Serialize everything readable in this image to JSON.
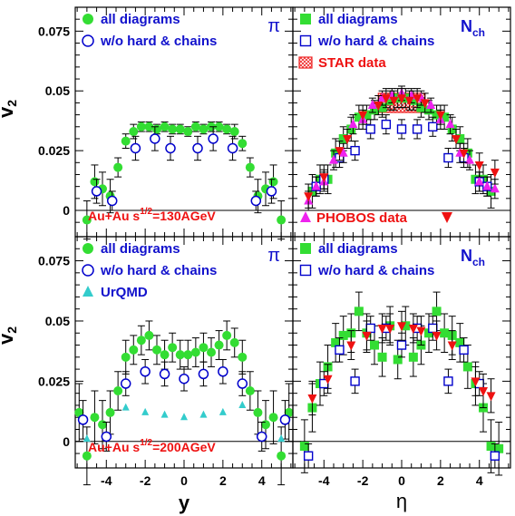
{
  "figure": {
    "y_axis_label": "v",
    "y_axis_label_sub": "2",
    "x_label_left": "y",
    "x_label_right": "η",
    "colors": {
      "all_diagrams": "#33dd33",
      "wo_hard_chains": "#0000cc",
      "urqmd": "#33cccc",
      "star": "#ee2222",
      "phobos_triangle": "#ee22ee",
      "phobos_down": "#ee1111",
      "text_blue": "#1111cc",
      "text_red": "#ee1111"
    }
  },
  "chart_data": [
    {
      "type": "scatter",
      "panel": "top-left",
      "xlim": [
        -5.6,
        5.6
      ],
      "ylim": [
        -0.011,
        0.085
      ],
      "xticks": [],
      "yticks": [
        "0",
        "0.025",
        "0.05",
        "0.075"
      ],
      "species_label": "π",
      "species_sub": "",
      "annotation": "Au+Au  s",
      "annotation_sup": "1/2",
      "annotation_tail": "=130AGeV",
      "legend": [
        {
          "marker": "circle-filled",
          "label": "all diagrams"
        },
        {
          "marker": "circle-open",
          "label": "w/o hard & chains"
        }
      ],
      "series": [
        {
          "marker": "circle-filled",
          "color": "#33dd33",
          "x": [
            -5.0,
            -4.6,
            -4.2,
            -3.8,
            -3.4,
            -3.0,
            -2.6,
            -2.2,
            -1.8,
            -1.4,
            -1.0,
            -0.6,
            -0.2,
            0.2,
            0.6,
            1.0,
            1.4,
            1.8,
            2.2,
            2.6,
            3.0,
            3.4,
            3.8,
            4.2,
            4.6,
            5.0
          ],
          "y": [
            -0.004,
            0.012,
            0.009,
            0.006,
            0.018,
            0.029,
            0.033,
            0.035,
            0.035,
            0.034,
            0.035,
            0.034,
            0.034,
            0.033,
            0.035,
            0.034,
            0.035,
            0.035,
            0.034,
            0.033,
            0.028,
            0.018,
            0.006,
            0.009,
            0.012,
            -0.004
          ],
          "err": [
            0.008,
            0.007,
            0.007,
            0.007,
            0.004,
            0.003,
            0.003,
            0.002,
            0.002,
            0.002,
            0.002,
            0.002,
            0.002,
            0.002,
            0.002,
            0.002,
            0.002,
            0.002,
            0.002,
            0.003,
            0.003,
            0.004,
            0.007,
            0.007,
            0.007,
            0.008
          ]
        },
        {
          "marker": "circle-open",
          "color": "#0000cc",
          "x": [
            -4.5,
            -3.7,
            -2.5,
            -1.5,
            -0.7,
            0.7,
            1.5,
            2.5,
            3.7,
            4.5
          ],
          "y": [
            0.008,
            0.004,
            0.026,
            0.03,
            0.026,
            0.026,
            0.03,
            0.026,
            0.004,
            0.008
          ],
          "err": [
            0.005,
            0.004,
            0.005,
            0.005,
            0.005,
            0.005,
            0.005,
            0.005,
            0.004,
            0.005
          ]
        }
      ]
    },
    {
      "type": "scatter",
      "panel": "top-right",
      "xlim": [
        -5.6,
        5.6
      ],
      "ylim": [
        -0.011,
        0.085
      ],
      "xticks": [],
      "yticks": [],
      "species_label": "N",
      "species_sub": "ch",
      "annotation": "PHOBOS data",
      "legend": [
        {
          "marker": "square-filled",
          "label": "all diagrams"
        },
        {
          "marker": "square-open",
          "label": "w/o hard & chains"
        },
        {
          "marker": "star-box",
          "label": "STAR data"
        }
      ],
      "star_band": {
        "x": [
          -1.2,
          1.2
        ],
        "y": [
          0.041,
          0.049
        ]
      },
      "series": [
        {
          "marker": "square-filled",
          "color": "#33dd33",
          "x": [
            -4.6,
            -4.2,
            -3.8,
            -3.4,
            -3.0,
            -2.6,
            -2.2,
            -1.8,
            -1.4,
            -1.0,
            -0.6,
            -0.2,
            0.2,
            0.6,
            1.0,
            1.4,
            1.8,
            2.2,
            2.6,
            3.0,
            3.4,
            3.8,
            4.2,
            4.6
          ],
          "y": [
            0.008,
            0.013,
            0.013,
            0.024,
            0.03,
            0.034,
            0.039,
            0.04,
            0.042,
            0.043,
            0.046,
            0.047,
            0.047,
            0.046,
            0.043,
            0.042,
            0.04,
            0.039,
            0.034,
            0.03,
            0.024,
            0.013,
            0.013,
            0.008
          ],
          "err": [
            0.007,
            0.006,
            0.006,
            0.006,
            0.005,
            0.005,
            0.005,
            0.004,
            0.004,
            0.004,
            0.004,
            0.004,
            0.004,
            0.004,
            0.004,
            0.004,
            0.004,
            0.005,
            0.005,
            0.005,
            0.006,
            0.006,
            0.006,
            0.007
          ]
        },
        {
          "marker": "square-open",
          "color": "#0000cc",
          "x": [
            -4.4,
            -4.0,
            -3.2,
            -2.4,
            -1.6,
            -0.8,
            0.0,
            0.8,
            1.6,
            2.4,
            3.2,
            4.0,
            4.4
          ],
          "y": [
            0.01,
            0.013,
            0.022,
            0.025,
            0.034,
            0.036,
            0.034,
            0.034,
            0.035,
            0.022,
            0.022,
            0.012,
            0.01
          ],
          "err": [
            0.004,
            0.004,
            0.004,
            0.004,
            0.004,
            0.004,
            0.004,
            0.004,
            0.004,
            0.004,
            0.004,
            0.004,
            0.004
          ]
        },
        {
          "marker": "triangle-up",
          "color": "#ee22ee",
          "x": [
            -4.8,
            -4.4,
            -4.0,
            -3.5,
            -3.0,
            -2.5,
            -2.0,
            -1.5,
            -1.0,
            -0.5,
            0.0,
            0.5,
            1.0,
            1.5,
            2.0,
            2.5,
            3.0,
            3.5,
            4.0,
            4.4,
            4.8
          ],
          "y": [
            0.004,
            0.01,
            0.012,
            0.021,
            0.024,
            0.036,
            0.038,
            0.044,
            0.047,
            0.048,
            0.049,
            0.048,
            0.047,
            0.044,
            0.038,
            0.036,
            0.024,
            0.021,
            0.012,
            0.01,
            0.009
          ],
          "err": [
            0.004,
            0.004,
            0.004,
            0.004,
            0.004,
            0.004,
            0.004,
            0.003,
            0.003,
            0.003,
            0.003,
            0.003,
            0.003,
            0.003,
            0.004,
            0.004,
            0.004,
            0.004,
            0.004,
            0.004,
            0.004
          ]
        },
        {
          "marker": "triangle-down",
          "color": "#ee1111",
          "x": [
            -4.8,
            -4.0,
            -3.2,
            -2.8,
            -2.0,
            -1.2,
            -0.8,
            -0.4,
            0.0,
            0.4,
            0.8,
            1.2,
            2.0,
            2.8,
            3.2,
            4.0,
            4.8
          ],
          "y": [
            0.006,
            0.014,
            0.025,
            0.03,
            0.04,
            0.044,
            0.047,
            0.046,
            0.047,
            0.046,
            0.047,
            0.045,
            0.04,
            0.03,
            0.024,
            0.019,
            0.016
          ],
          "err": [
            0.005,
            0.005,
            0.004,
            0.004,
            0.004,
            0.004,
            0.004,
            0.004,
            0.004,
            0.004,
            0.004,
            0.004,
            0.004,
            0.004,
            0.004,
            0.005,
            0.005
          ]
        }
      ]
    },
    {
      "type": "scatter",
      "panel": "bottom-left",
      "xlim": [
        -5.6,
        5.6
      ],
      "ylim": [
        -0.011,
        0.085
      ],
      "xticks": [
        "-4",
        "-2",
        "0",
        "2",
        "4"
      ],
      "yticks": [
        "0",
        "0.025",
        "0.05",
        "0.075"
      ],
      "species_label": "π",
      "species_sub": "",
      "annotation": "Au+Au  s",
      "annotation_sup": "1/2",
      "annotation_tail": "=200AGeV",
      "legend": [
        {
          "marker": "circle-filled",
          "label": "all diagrams"
        },
        {
          "marker": "circle-open",
          "label": "w/o hard & chains"
        },
        {
          "marker": "triangle-up",
          "label": "UrQMD"
        }
      ],
      "series": [
        {
          "marker": "circle-filled",
          "color": "#33dd33",
          "x": [
            -5.4,
            -5.0,
            -4.6,
            -4.2,
            -3.8,
            -3.4,
            -3.0,
            -2.6,
            -2.2,
            -1.8,
            -1.4,
            -1.0,
            -0.6,
            -0.2,
            0.2,
            0.6,
            1.0,
            1.4,
            1.8,
            2.2,
            2.6,
            3.0,
            3.4,
            3.8,
            4.2,
            4.6,
            5.0,
            5.4
          ],
          "y": [
            0.012,
            -0.006,
            0.01,
            0.007,
            0.012,
            0.021,
            0.035,
            0.038,
            0.042,
            0.044,
            0.038,
            0.036,
            0.039,
            0.036,
            0.036,
            0.037,
            0.039,
            0.037,
            0.04,
            0.044,
            0.041,
            0.035,
            0.021,
            0.012,
            0.007,
            0.01,
            -0.006,
            0.012
          ],
          "err": [
            0.012,
            0.012,
            0.011,
            0.01,
            0.009,
            0.008,
            0.007,
            0.006,
            0.006,
            0.006,
            0.006,
            0.006,
            0.006,
            0.006,
            0.006,
            0.006,
            0.006,
            0.006,
            0.006,
            0.006,
            0.006,
            0.007,
            0.008,
            0.009,
            0.01,
            0.011,
            0.012,
            0.012
          ]
        },
        {
          "marker": "circle-open",
          "color": "#0000cc",
          "x": [
            -5.2,
            -4.0,
            -3.0,
            -2.0,
            -1.0,
            0.0,
            1.0,
            2.0,
            3.0,
            4.0,
            5.2
          ],
          "y": [
            0.009,
            0.002,
            0.024,
            0.029,
            0.028,
            0.026,
            0.028,
            0.029,
            0.024,
            0.002,
            0.009
          ],
          "err": [
            0.008,
            0.006,
            0.005,
            0.005,
            0.005,
            0.005,
            0.005,
            0.005,
            0.005,
            0.006,
            0.008
          ]
        },
        {
          "marker": "triangle-up",
          "color": "#33cccc",
          "x": [
            -5.0,
            -3.0,
            -2.0,
            -1.0,
            0.0,
            1.0,
            2.0,
            3.0,
            5.0
          ],
          "y": [
            0.001,
            0.014,
            0.012,
            0.011,
            0.01,
            0.011,
            0.012,
            0.015,
            0.001
          ],
          "err": [
            0,
            0,
            0,
            0,
            0,
            0,
            0,
            0,
            0
          ]
        }
      ]
    },
    {
      "type": "scatter",
      "panel": "bottom-right",
      "xlim": [
        -5.6,
        5.6
      ],
      "ylim": [
        -0.011,
        0.085
      ],
      "xticks": [
        "-4",
        "-2",
        "0",
        "2",
        "4"
      ],
      "yticks": [],
      "species_label": "N",
      "species_sub": "ch",
      "legend": [
        {
          "marker": "square-filled",
          "label": "all diagrams"
        },
        {
          "marker": "square-open",
          "label": "w/o hard & chains"
        }
      ],
      "series": [
        {
          "marker": "square-filled",
          "color": "#33dd33",
          "x": [
            -5.0,
            -4.6,
            -4.2,
            -3.8,
            -3.4,
            -3.0,
            -2.6,
            -2.2,
            -1.8,
            -1.4,
            -1.0,
            -0.6,
            -0.2,
            0.2,
            0.6,
            1.0,
            1.4,
            1.8,
            2.2,
            2.6,
            3.0,
            3.4,
            3.8,
            4.2,
            4.6,
            5.0
          ],
          "y": [
            -0.002,
            0.014,
            0.024,
            0.031,
            0.041,
            0.044,
            0.045,
            0.054,
            0.045,
            0.04,
            0.035,
            0.048,
            0.034,
            0.048,
            0.035,
            0.04,
            0.045,
            0.054,
            0.045,
            0.044,
            0.041,
            0.031,
            0.024,
            0.014,
            -0.002,
            -0.003
          ],
          "err": [
            0.011,
            0.01,
            0.009,
            0.009,
            0.008,
            0.008,
            0.008,
            0.008,
            0.008,
            0.008,
            0.008,
            0.008,
            0.008,
            0.008,
            0.008,
            0.008,
            0.008,
            0.008,
            0.008,
            0.008,
            0.008,
            0.009,
            0.009,
            0.01,
            0.011,
            0.011
          ]
        },
        {
          "marker": "square-open",
          "color": "#0000cc",
          "x": [
            -4.8,
            -4.0,
            -3.2,
            -2.4,
            -1.6,
            -0.8,
            0.0,
            0.8,
            1.6,
            2.4,
            3.2,
            4.0,
            4.8
          ],
          "y": [
            -0.006,
            0.024,
            0.038,
            0.025,
            0.047,
            0.047,
            0.04,
            0.047,
            0.047,
            0.025,
            0.038,
            0.024,
            -0.006
          ],
          "err": [
            0.005,
            0.005,
            0.005,
            0.005,
            0.005,
            0.005,
            0.005,
            0.005,
            0.005,
            0.005,
            0.005,
            0.005,
            0.005
          ]
        },
        {
          "marker": "triangle-down",
          "color": "#ee1111",
          "x": [
            -4.6,
            -3.8,
            -2.6,
            -1.8,
            -1.0,
            -0.6,
            0.0,
            0.6,
            1.0,
            1.8,
            2.6,
            3.8,
            4.2,
            4.6
          ],
          "y": [
            0.018,
            0.026,
            0.04,
            0.044,
            0.047,
            0.047,
            0.048,
            0.047,
            0.046,
            0.044,
            0.04,
            0.025,
            0.021,
            0.019
          ],
          "err": [
            0.007,
            0.006,
            0.006,
            0.006,
            0.006,
            0.006,
            0.006,
            0.006,
            0.006,
            0.006,
            0.006,
            0.006,
            0.007,
            0.007
          ]
        }
      ]
    }
  ]
}
